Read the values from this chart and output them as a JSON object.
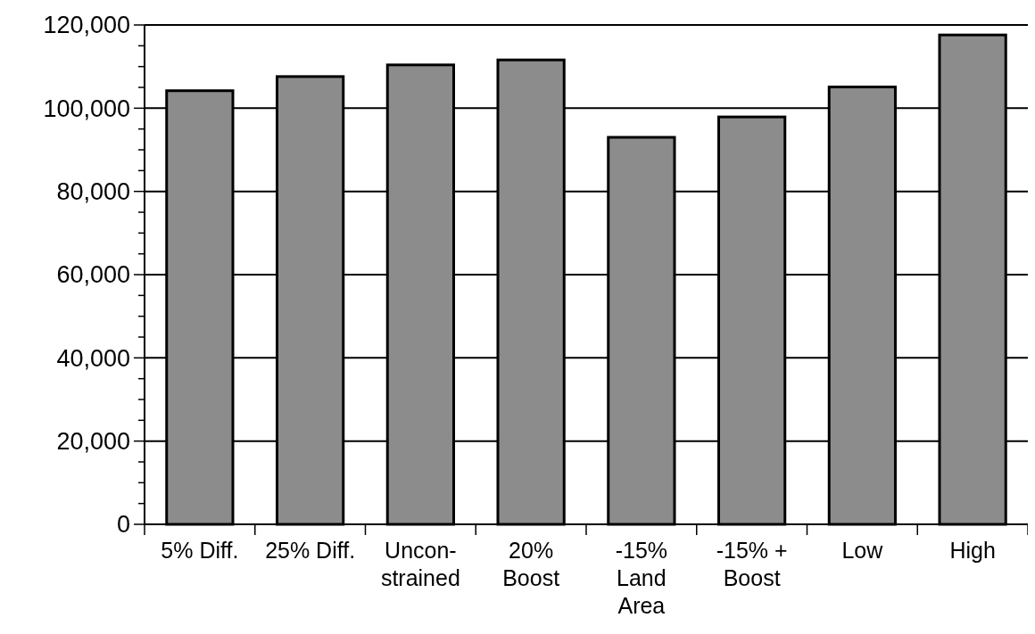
{
  "chart_data": {
    "type": "bar",
    "categories": [
      "5% Diff.",
      "25% Diff.",
      "Uncon-\nstrained",
      "20%\nBoost",
      "-15%\nLand\nArea",
      "-15% +\nBoost",
      "Low",
      "High"
    ],
    "values": [
      104200,
      107600,
      110400,
      111600,
      93000,
      97900,
      105100,
      117600
    ],
    "color": "#8c8c8c",
    "ylim": [
      0,
      120000
    ],
    "yticks": [
      0,
      {
        "value": 5000,
        "label": null
      },
      {
        "value": 10000,
        "label": null
      },
      {
        "value": 15000,
        "label": null
      },
      {
        "value": 20000,
        "label": "20,000"
      },
      {
        "value": 25000,
        "label": null
      },
      {
        "value": 30000,
        "label": null
      },
      {
        "value": 35000,
        "label": null
      },
      {
        "value": 40000,
        "label": "40,000"
      },
      {
        "value": 45000,
        "label": null
      },
      {
        "value": 50000,
        "label": null
      },
      {
        "value": 55000,
        "label": null
      },
      {
        "value": 60000,
        "label": "60,000"
      },
      {
        "value": 65000,
        "label": null
      },
      {
        "value": 70000,
        "label": null
      },
      {
        "value": 75000,
        "label": null
      },
      {
        "value": 80000,
        "label": "80,000"
      },
      {
        "value": 85000,
        "label": null
      },
      {
        "value": 90000,
        "label": null
      },
      {
        "value": 95000,
        "label": null
      },
      {
        "value": 100000,
        "label": "100,000"
      },
      {
        "value": 105000,
        "label": null
      },
      {
        "value": 110000,
        "label": null
      },
      {
        "value": 115000,
        "label": null
      },
      {
        "value": 120000,
        "label": "120,000"
      }
    ],
    "grid": "y"
  }
}
